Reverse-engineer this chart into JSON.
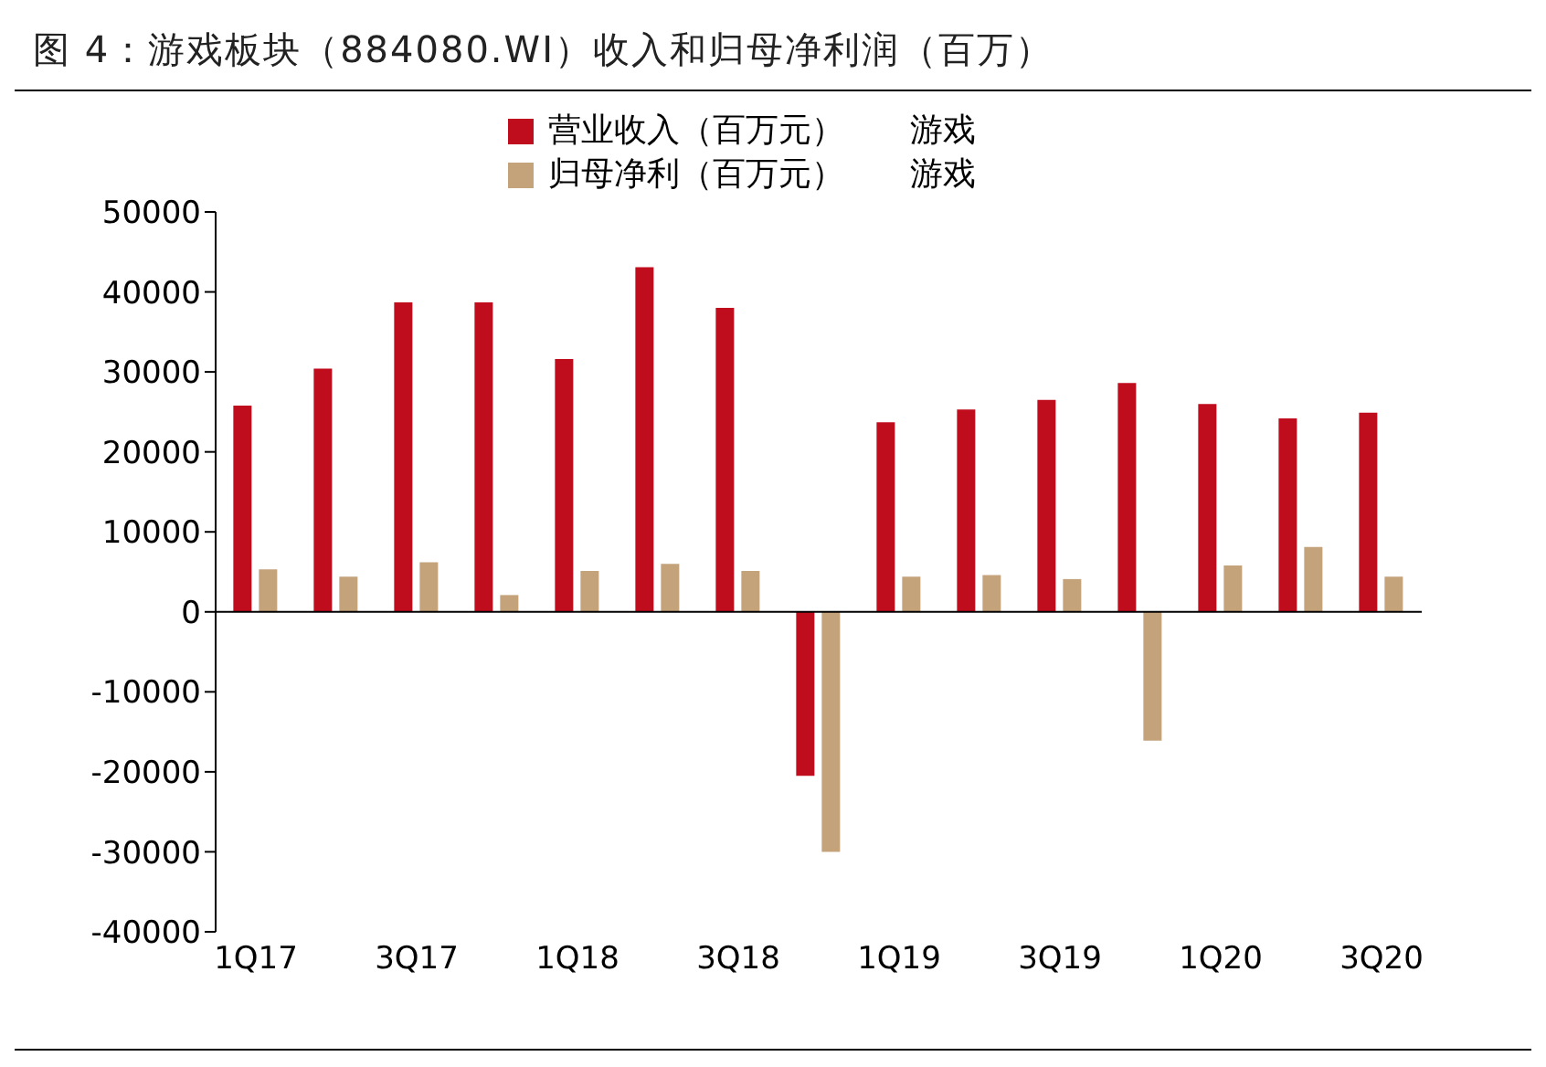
{
  "chart_data": {
    "type": "bar",
    "title": "图 4：游戏板块（884080.WI）收入和归母净利润（百万）",
    "categories": [
      "1Q17",
      null,
      "3Q17",
      null,
      "1Q18",
      null,
      "3Q18",
      null,
      "1Q19",
      null,
      "3Q19",
      null,
      "1Q20",
      null,
      "3Q20"
    ],
    "series": [
      {
        "name": "营业收入（百万元）　　游戏",
        "color": "#c00d1e",
        "values": [
          25800,
          30400,
          38700,
          38700,
          31600,
          43100,
          38000,
          -20500,
          23700,
          25300,
          26500,
          28600,
          26000,
          24200,
          24900
        ]
      },
      {
        "name": "归母净利（百万元）　　游戏",
        "color": "#c4a27a",
        "values": [
          5300,
          4400,
          6200,
          2100,
          5100,
          6000,
          5100,
          -30000,
          4400,
          4600,
          4100,
          -16100,
          5800,
          8100,
          4400
        ]
      }
    ],
    "ylim": [
      -40000,
      50000
    ],
    "yticks": [
      -40000,
      -30000,
      -20000,
      -10000,
      0,
      10000,
      20000,
      30000,
      40000,
      50000
    ],
    "legend": "top"
  }
}
